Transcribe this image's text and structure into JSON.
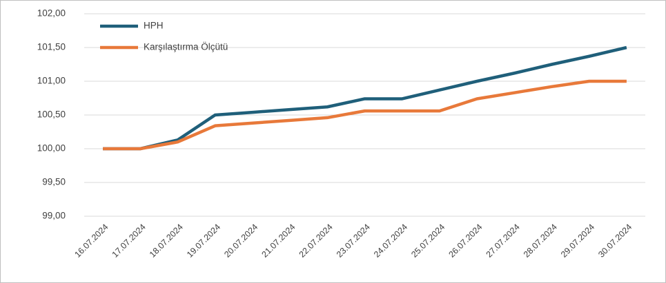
{
  "chart_data": {
    "type": "line",
    "categories": [
      "16.07.2024",
      "17.07.2024",
      "18.07.2024",
      "19.07.2024",
      "20.07.2024",
      "21.07.2024",
      "22.07.2024",
      "23.07.2024",
      "24.07.2024",
      "25.07.2024",
      "26.07.2024",
      "27.07.2024",
      "28.07.2024",
      "29.07.2024",
      "30.07.2024"
    ],
    "series": [
      {
        "name": "HPH",
        "color": "#1f5f7a",
        "values": [
          100,
          100,
          100.13,
          100.5,
          100.54,
          100.58,
          100.62,
          100.74,
          100.74,
          100.87,
          101.0,
          101.12,
          101.25,
          101.37,
          101.5
        ]
      },
      {
        "name": "Karşılaştırma Ölçütü",
        "color": "#e8793a",
        "values": [
          100,
          100,
          100.1,
          100.34,
          100.38,
          100.42,
          100.46,
          100.56,
          100.56,
          100.56,
          100.74,
          100.83,
          100.92,
          101.0,
          101.0
        ]
      }
    ],
    "ylim": [
      99,
      102
    ],
    "yticks": [
      {
        "value": 99,
        "label": "99,00"
      },
      {
        "value": 99.5,
        "label": "99,50"
      },
      {
        "value": 100,
        "label": "100,00"
      },
      {
        "value": 100.5,
        "label": "100,50"
      },
      {
        "value": 101,
        "label": "101,00"
      },
      {
        "value": 101.5,
        "label": "101,50"
      },
      {
        "value": 102,
        "label": "102,00"
      }
    ],
    "grid": true,
    "legend": "top-left"
  }
}
